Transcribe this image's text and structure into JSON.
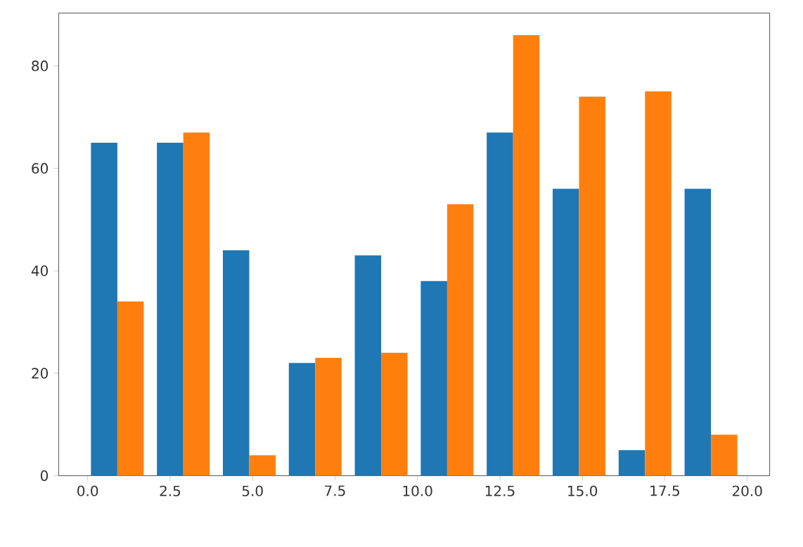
{
  "chart_data": {
    "type": "bar",
    "series": [
      {
        "color": "#1f77b4",
        "x": [
          0.5,
          2.5,
          4.5,
          6.5,
          8.5,
          10.5,
          12.5,
          14.5,
          16.5,
          18.5
        ],
        "values": [
          65,
          65,
          44,
          22,
          43,
          38,
          67,
          56,
          5,
          56
        ]
      },
      {
        "color": "#ff7f0e",
        "x": [
          1.3,
          3.3,
          5.3,
          7.3,
          9.3,
          11.3,
          13.3,
          15.3,
          17.3,
          19.3
        ],
        "values": [
          34,
          67,
          4,
          23,
          24,
          53,
          86,
          74,
          75,
          8
        ]
      }
    ],
    "xlim": [
      -0.88,
      20.68
    ],
    "xticks": [
      {
        "value": 0,
        "label": "0.0"
      },
      {
        "value": 2.5,
        "label": "2.5"
      },
      {
        "value": 5,
        "label": "5.0"
      },
      {
        "value": 7.5,
        "label": "7.5"
      },
      {
        "value": 10,
        "label": "10.0"
      },
      {
        "value": 12.5,
        "label": "12.5"
      },
      {
        "value": 15,
        "label": "15.0"
      },
      {
        "value": 17.5,
        "label": "17.5"
      },
      {
        "value": 20,
        "label": "20.0"
      }
    ],
    "ylim": [
      0,
      90.3
    ],
    "yticks": [
      0,
      20,
      40,
      60,
      80
    ]
  }
}
